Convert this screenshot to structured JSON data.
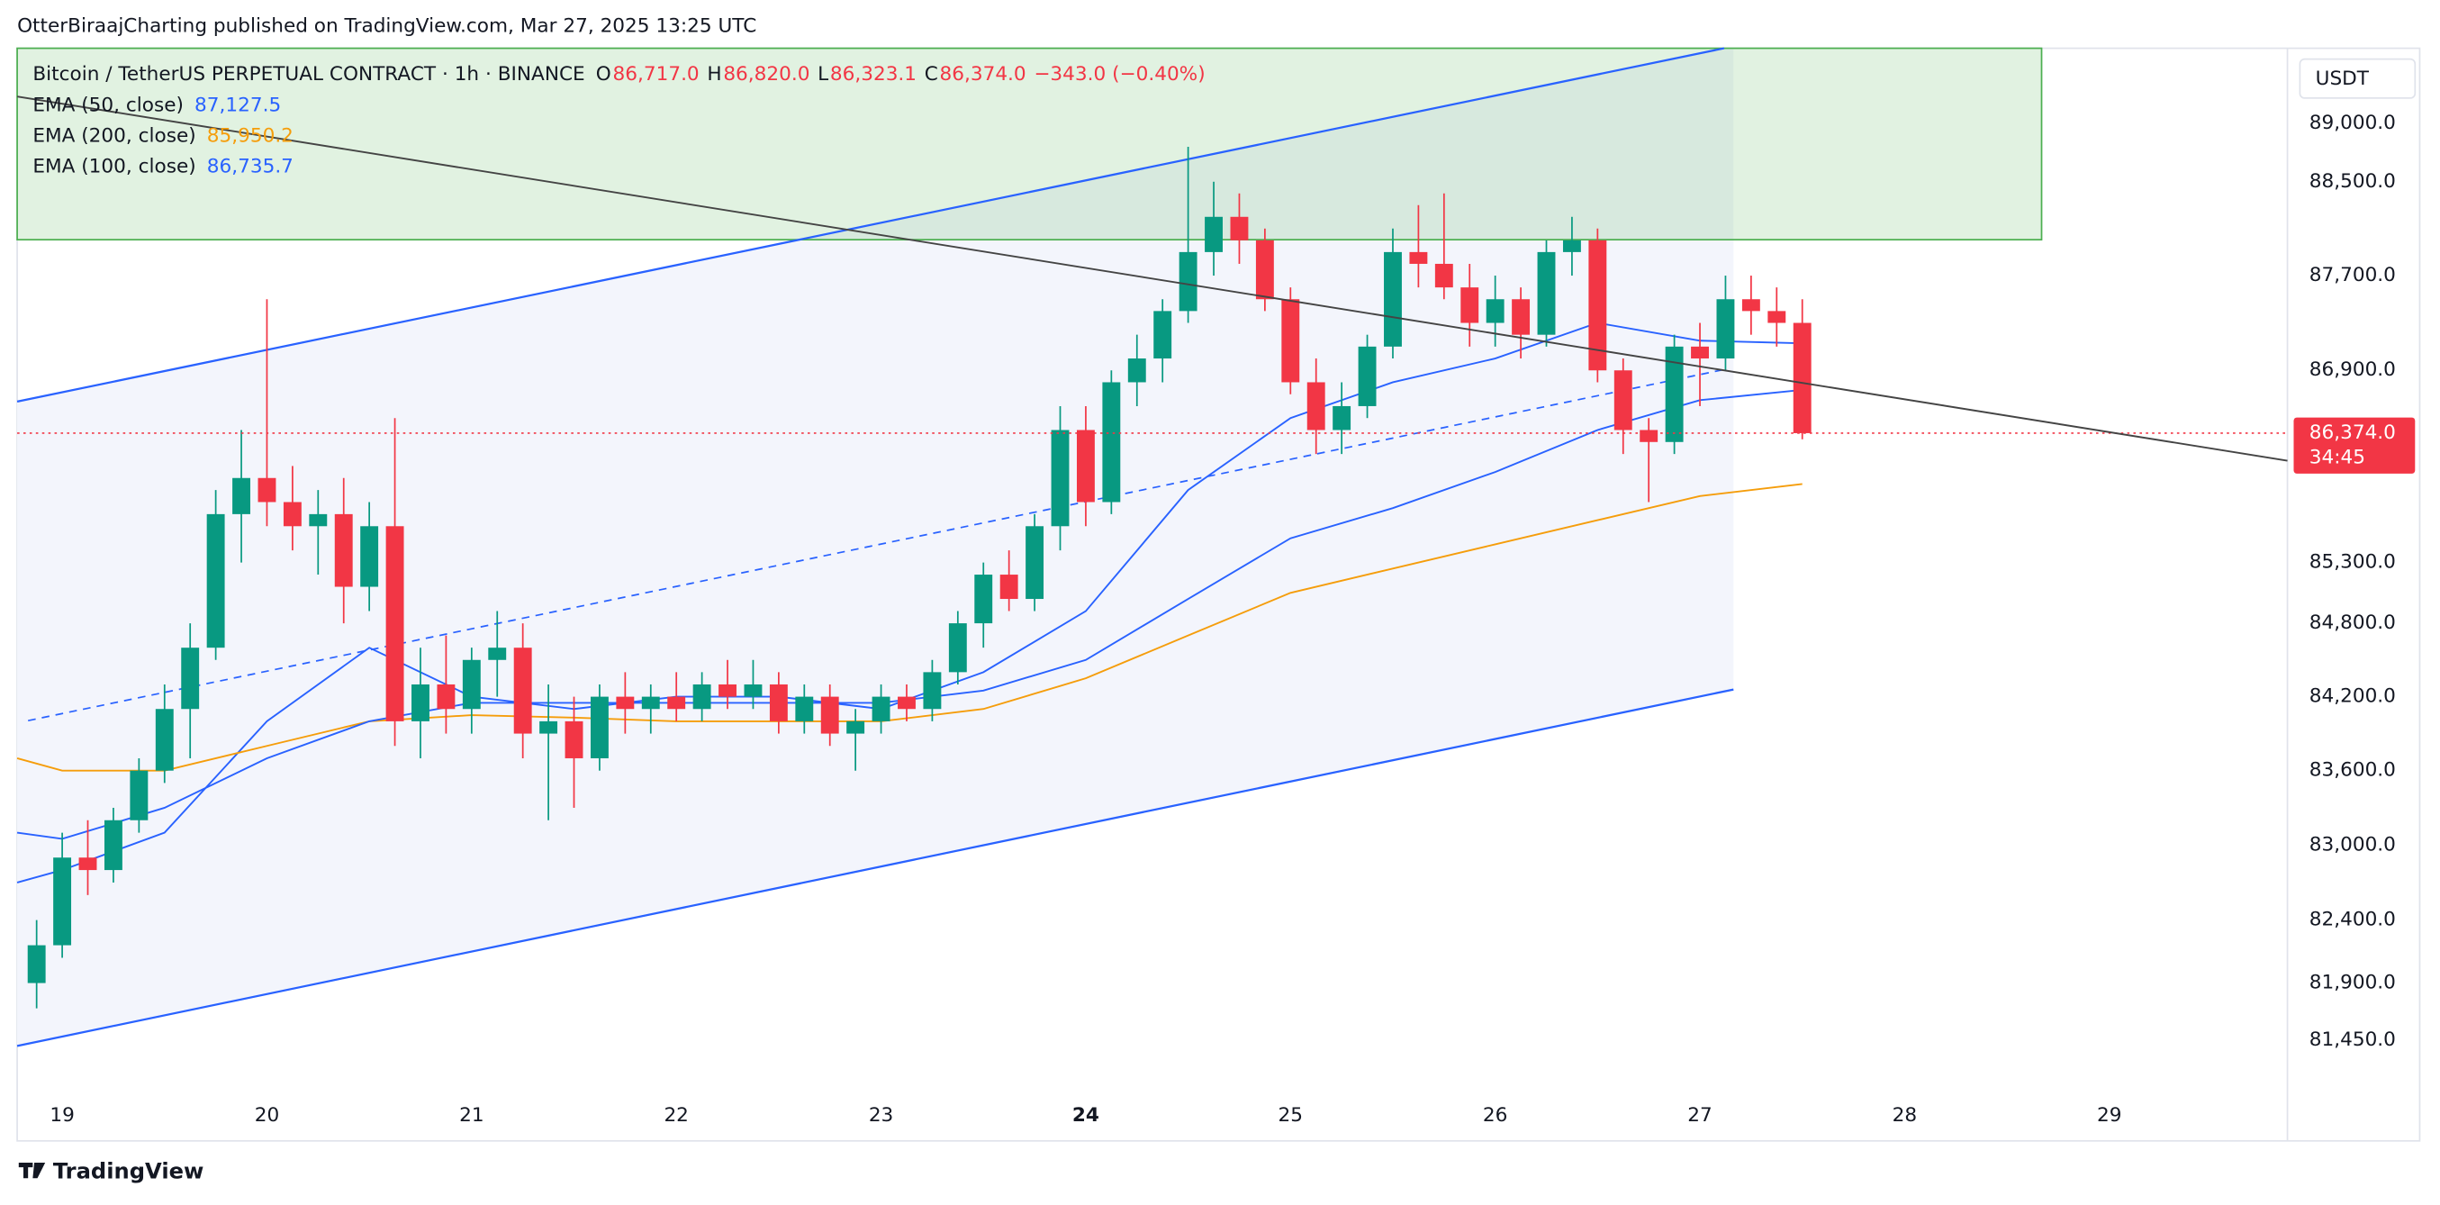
{
  "header": "OtterBiraajCharting published on TradingView.com, Mar 27, 2025 13:25 UTC",
  "footer": "TradingView",
  "chart_data": {
    "type": "candlestick",
    "symbol": "Bitcoin / TetherUS PERPETUAL CONTRACT · 1h · BINANCE",
    "ohlc": [
      {
        "label": "O",
        "value": "86,717.0"
      },
      {
        "label": "H",
        "value": "86,820.0"
      },
      {
        "label": "L",
        "value": "86,323.1"
      },
      {
        "label": "C",
        "value": "86,374.0"
      }
    ],
    "change": "−343.0 (−0.40%)",
    "currency": "USDT",
    "up_color": "#089981",
    "down_color": "#f23645",
    "log": true,
    "grid": false,
    "xlim": [
      18.78,
      29.87
    ],
    "xticks": [
      19,
      20,
      21,
      22,
      23,
      24,
      25,
      26,
      27,
      28,
      29
    ],
    "xtick_bold": [
      24
    ],
    "ylim": [
      81000,
      89650
    ],
    "yticks": [
      {
        "value": 89000,
        "label": "89,000.0"
      },
      {
        "value": 88500,
        "label": "88,500.0"
      },
      {
        "value": 87700,
        "label": "87,700.0"
      },
      {
        "value": 86900,
        "label": "86,900.0"
      },
      {
        "value": 85300,
        "label": "85,300.0"
      },
      {
        "value": 84800,
        "label": "84,800.0"
      },
      {
        "value": 84200,
        "label": "84,200.0"
      },
      {
        "value": 83600,
        "label": "83,600.0"
      },
      {
        "value": 83000,
        "label": "83,000.0"
      },
      {
        "value": 82400,
        "label": "82,400.0"
      },
      {
        "value": 81900,
        "label": "81,900.0"
      },
      {
        "value": 81450,
        "label": "81,450.0"
      }
    ],
    "last_price": {
      "value": 86374,
      "label": "86,374.0"
    },
    "countdown": "34:45",
    "x": [
      18.875,
      19.0,
      19.125,
      19.25,
      19.375,
      19.5,
      19.625,
      19.75,
      19.875,
      20.0,
      20.125,
      20.25,
      20.375,
      20.5,
      20.625,
      20.75,
      20.875,
      21.0,
      21.125,
      21.25,
      21.375,
      21.5,
      21.625,
      21.75,
      21.875,
      22.0,
      22.125,
      22.25,
      22.375,
      22.5,
      22.625,
      22.75,
      22.875,
      23.0,
      23.125,
      23.25,
      23.375,
      23.5,
      23.625,
      23.75,
      23.875,
      24.0,
      24.125,
      24.25,
      24.375,
      24.5,
      24.625,
      24.75,
      24.875,
      25.0,
      25.125,
      25.25,
      25.375,
      25.5,
      25.625,
      25.75,
      25.875,
      26.0,
      26.125,
      26.25,
      26.375,
      26.5,
      26.625,
      26.75,
      26.875,
      27.0,
      27.125,
      27.25,
      27.375,
      27.5
    ],
    "open": [
      81900,
      82200,
      82900,
      82800,
      83200,
      83600,
      84100,
      84600,
      85700,
      86000,
      85800,
      85600,
      85700,
      85100,
      85600,
      84000,
      84300,
      84100,
      84500,
      84600,
      83900,
      84000,
      83700,
      84200,
      84100,
      84200,
      84100,
      84300,
      84200,
      84300,
      84000,
      84200,
      83900,
      84000,
      84200,
      84100,
      84400,
      84800,
      85200,
      85000,
      85600,
      86400,
      85800,
      86800,
      87000,
      87400,
      87900,
      88200,
      88000,
      87500,
      86800,
      86400,
      86600,
      87100,
      87900,
      87800,
      87600,
      87300,
      87500,
      87200,
      87900,
      88000,
      86900,
      86400,
      86300,
      87100,
      87000,
      87500,
      87400,
      87300
    ],
    "high": [
      82400,
      83100,
      83200,
      83300,
      83700,
      84300,
      84800,
      85900,
      86400,
      87500,
      86100,
      85900,
      86000,
      85800,
      86500,
      84600,
      84700,
      84600,
      84900,
      84800,
      84300,
      84200,
      84300,
      84400,
      84300,
      84400,
      84400,
      84500,
      84500,
      84400,
      84300,
      84300,
      84100,
      84300,
      84300,
      84500,
      84900,
      85300,
      85400,
      85700,
      86600,
      86600,
      86900,
      87200,
      87500,
      88800,
      88500,
      88400,
      88100,
      87600,
      87000,
      86800,
      87200,
      88100,
      88300,
      88400,
      87800,
      87700,
      87600,
      88000,
      88200,
      88100,
      87000,
      86500,
      87200,
      87300,
      87700,
      87700,
      87600,
      87500
    ],
    "low": [
      81700,
      82100,
      82600,
      82700,
      83100,
      83500,
      83700,
      84500,
      85300,
      85600,
      85400,
      85200,
      84800,
      84900,
      83800,
      83700,
      83900,
      83900,
      84200,
      83700,
      83200,
      83300,
      83600,
      83900,
      83900,
      84000,
      84000,
      84100,
      84100,
      83900,
      83900,
      83800,
      83600,
      83900,
      84000,
      84000,
      84300,
      84600,
      84900,
      84900,
      85400,
      85600,
      85700,
      86600,
      86800,
      87300,
      87700,
      87800,
      87400,
      86700,
      86200,
      86200,
      86500,
      87000,
      87600,
      87500,
      87100,
      87100,
      87000,
      87100,
      87700,
      86800,
      86200,
      85800,
      86200,
      86600,
      86900,
      87200,
      87100,
      86323.1
    ],
    "close": [
      82200,
      82900,
      82800,
      83200,
      83600,
      84100,
      84600,
      85700,
      86000,
      85800,
      85600,
      85700,
      85100,
      85600,
      84000,
      84300,
      84100,
      84500,
      84600,
      83900,
      84000,
      83700,
      84200,
      84100,
      84200,
      84100,
      84300,
      84200,
      84300,
      84000,
      84200,
      83900,
      84000,
      84200,
      84100,
      84400,
      84800,
      85200,
      85000,
      85600,
      86400,
      85800,
      86800,
      87000,
      87400,
      87900,
      88200,
      88000,
      87500,
      86800,
      86400,
      86600,
      87100,
      87900,
      87800,
      87600,
      87300,
      87500,
      87200,
      87900,
      88000,
      86900,
      86400,
      86300,
      87100,
      87000,
      87500,
      87400,
      87300,
      86374
    ],
    "series": [
      {
        "name": "EMA (50, close)",
        "legend_value": "87,127.5",
        "color": "#2962ff",
        "x": [
          18.78,
          19,
          19.5,
          20,
          20.5,
          21,
          21.5,
          22,
          22.5,
          23,
          23.5,
          24,
          24.5,
          25,
          25.5,
          26,
          26.5,
          27,
          27.5
        ],
        "values": [
          82700,
          82800,
          83100,
          84000,
          84600,
          84200,
          84100,
          84200,
          84200,
          84100,
          84400,
          84900,
          85900,
          86500,
          86800,
          87000,
          87300,
          87150,
          87127.5
        ]
      },
      {
        "name": "EMA (200, close)",
        "legend_value": "85,950.2",
        "color": "#f59d0b",
        "x": [
          18.78,
          19,
          19.5,
          20,
          20.5,
          21,
          21.5,
          22,
          22.5,
          23,
          23.5,
          24,
          24.5,
          25,
          25.5,
          26,
          26.5,
          27,
          27.5
        ],
        "values": [
          83700,
          83600,
          83600,
          83800,
          84000,
          84050,
          84030,
          84000,
          84000,
          84000,
          84100,
          84350,
          84700,
          85050,
          85250,
          85450,
          85650,
          85850,
          85950.2
        ]
      },
      {
        "name": "EMA (100, close)",
        "legend_value": "86,735.7",
        "color": "#2962ff",
        "x": [
          18.78,
          19,
          19.5,
          20,
          20.5,
          21,
          21.5,
          22,
          22.5,
          23,
          23.5,
          24,
          24.5,
          25,
          25.5,
          26,
          26.5,
          27,
          27.5
        ],
        "values": [
          83100,
          83050,
          83300,
          83700,
          84000,
          84150,
          84150,
          84150,
          84150,
          84150,
          84250,
          84500,
          85000,
          85500,
          85750,
          86050,
          86400,
          86650,
          86735.7
        ]
      }
    ]
  }
}
